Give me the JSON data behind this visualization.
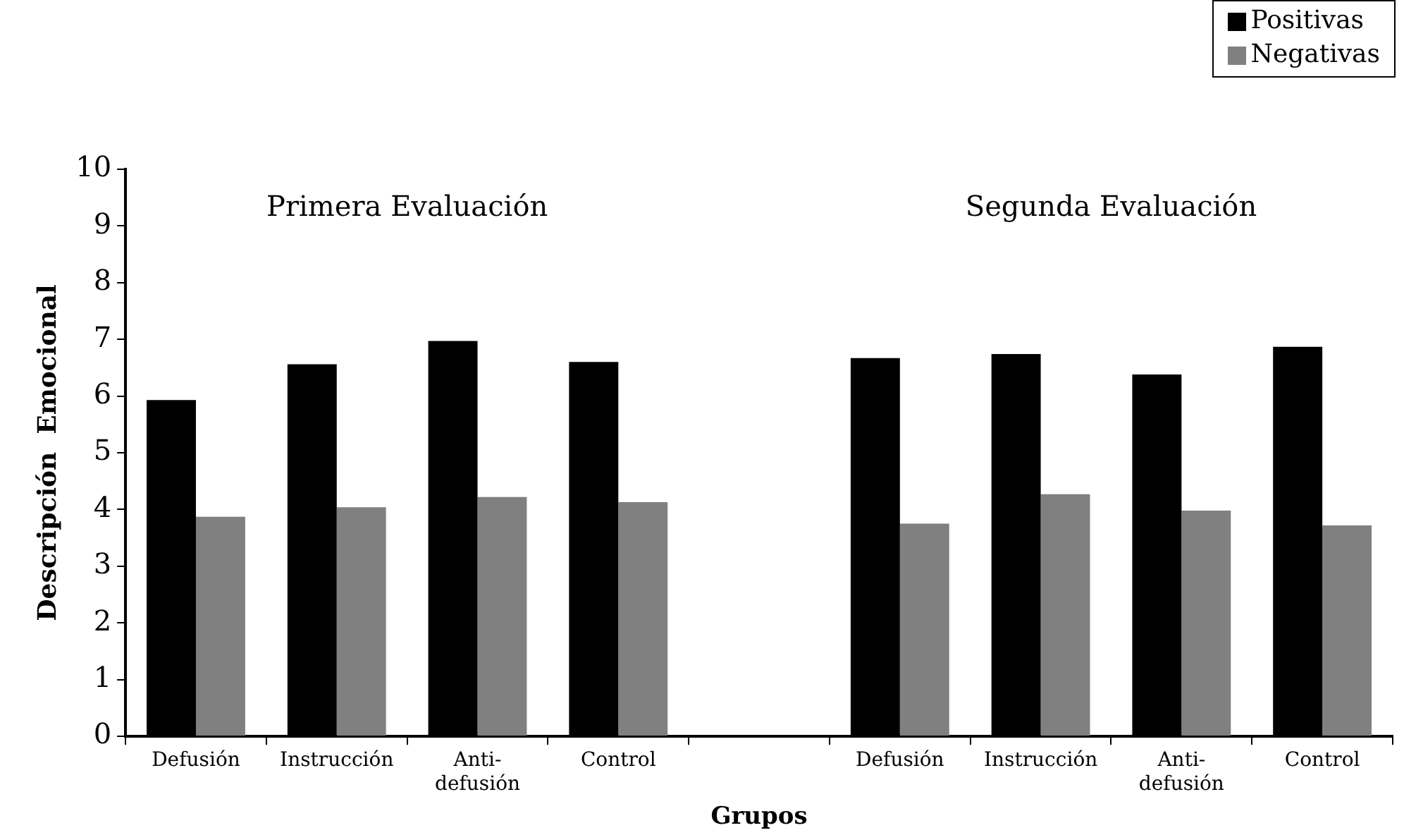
{
  "chart_data": {
    "type": "bar",
    "xlabel": "Grupos",
    "ylabel": "Descripción  Emocional",
    "categories": [
      "Defusión",
      "Instrucción",
      "Anti-defusión",
      "Control",
      null,
      "Defusión",
      "Instrucción",
      "Anti-defusión",
      "Control"
    ],
    "series": [
      {
        "name": "Positivas",
        "color": "#000000",
        "values": [
          5.93,
          6.56,
          6.97,
          6.6,
          null,
          6.67,
          6.74,
          6.38,
          6.87
        ]
      },
      {
        "name": "Negativas",
        "color": "#808080",
        "values": [
          3.87,
          4.04,
          4.22,
          4.13,
          null,
          3.75,
          4.27,
          3.98,
          3.72
        ]
      }
    ],
    "annotations": [
      "Primera Evaluación",
      "Segunda Evaluación"
    ],
    "ylim": [
      0,
      10
    ],
    "yticks": [
      0,
      1,
      2,
      3,
      4,
      5,
      6,
      7,
      8,
      9,
      10
    ],
    "grid": false,
    "legend": "top right"
  }
}
